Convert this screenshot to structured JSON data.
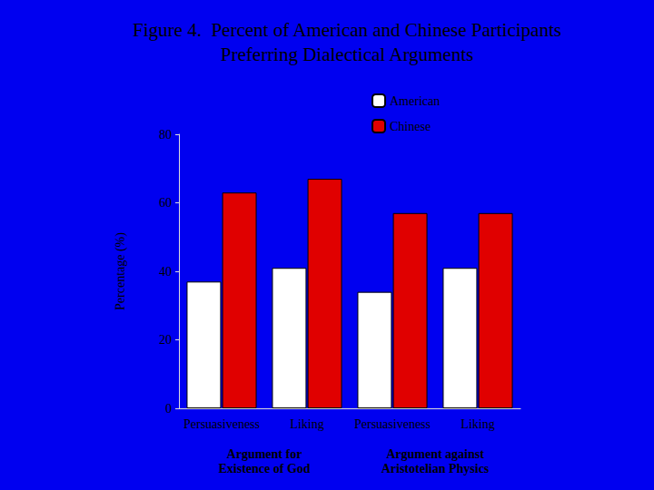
{
  "chart_data": {
    "type": "bar",
    "title": "Figure 4.  Percent of American and Chinese Participants\nPreferring Dialectical Arguments",
    "ylabel": "Percentage (%)",
    "categories": [
      "Persuasiveness",
      "Liking",
      "Persuasiveness",
      "Liking"
    ],
    "group_labels": [
      "Argument for\nExistence of God",
      "Argument against\nAristotelian Physics"
    ],
    "series": [
      {
        "name": "American",
        "color": "#ffffff",
        "values": [
          37,
          41,
          34,
          41
        ]
      },
      {
        "name": "Chinese",
        "color": "#e00000",
        "values": [
          63,
          67,
          57,
          57
        ]
      }
    ],
    "ylim": [
      0,
      80
    ],
    "yticks": [
      0,
      20,
      40,
      60,
      80
    ],
    "grid": false,
    "legend": "upper right"
  }
}
